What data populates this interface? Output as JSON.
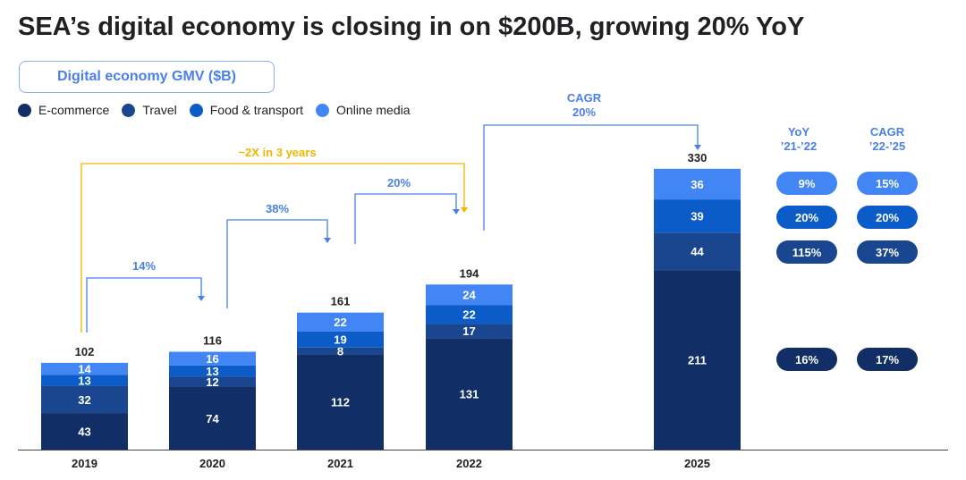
{
  "title": "SEA’s digital economy is closing in on $200B, growing 20% YoY",
  "chart_data": {
    "type": "bar",
    "stacked": true,
    "title": "Digital economy GMV ($B)",
    "categories": [
      "2019",
      "2020",
      "2021",
      "2022",
      "2025"
    ],
    "series": [
      {
        "name": "E-commerce",
        "color": "#112f66",
        "values": [
          43,
          74,
          112,
          131,
          211
        ]
      },
      {
        "name": "Travel",
        "color": "#1a4690",
        "values": [
          32,
          12,
          8,
          17,
          44
        ]
      },
      {
        "name": "Food & transport",
        "color": "#0b5cc8",
        "values": [
          13,
          13,
          19,
          22,
          39
        ]
      },
      {
        "name": "Online media",
        "color": "#4285f4",
        "values": [
          14,
          16,
          22,
          24,
          36
        ]
      }
    ],
    "totals": [
      102,
      116,
      161,
      194,
      330
    ],
    "annotations": {
      "growth_2019_2020": "14%",
      "growth_2020_2021": "38%",
      "growth_2021_2022": "20%",
      "doubling": "~2X in 3 years",
      "cagr_label": "CAGR",
      "cagr_value": "20%"
    },
    "legend": "top-left",
    "grid": false
  },
  "growth_table": {
    "yoy_header": [
      "YoY",
      "’21-’22"
    ],
    "cagr_header": [
      "CAGR",
      "’22-’25"
    ],
    "rows": [
      {
        "series": "Online media",
        "yoy": "9%",
        "cagr": "15%"
      },
      {
        "series": "Food & transport",
        "yoy": "20%",
        "cagr": "20%"
      },
      {
        "series": "Travel",
        "yoy": "115%",
        "cagr": "37%"
      },
      {
        "series": "E-commerce",
        "yoy": "16%",
        "cagr": "17%"
      }
    ]
  },
  "colors": {
    "accent": "#4a80e8",
    "highlight": "#f5b400"
  }
}
